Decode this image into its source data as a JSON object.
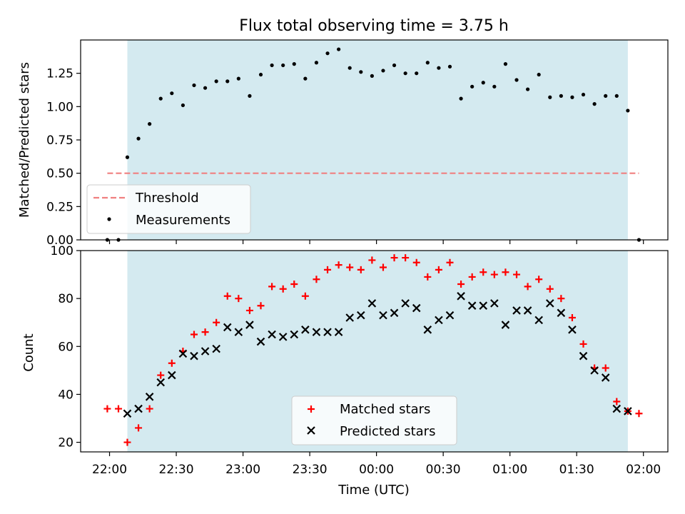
{
  "title": "Flux total observing time = 3.75 h",
  "xlabel": "Time (UTC)",
  "x_ticks": [
    "22:00",
    "22:30",
    "23:00",
    "23:30",
    "00:00",
    "00:30",
    "01:00",
    "01:30",
    "02:00"
  ],
  "x_tick_minutes": [
    0,
    30,
    60,
    90,
    120,
    150,
    180,
    210,
    240
  ],
  "observing_window_minutes": [
    8,
    233
  ],
  "colors": {
    "window": "#d4eaf0",
    "threshold": "#f08080",
    "measurements": "#000000",
    "matched": "#ff0000",
    "predicted": "#000000"
  },
  "chart_data": [
    {
      "type": "scatter",
      "name": "ratio",
      "ylabel": "Matched/Predicted stars",
      "xlim_minutes": [
        -13,
        251
      ],
      "ylim": [
        0,
        1.5
      ],
      "y_ticks": [
        "0.00",
        "0.25",
        "0.50",
        "0.75",
        "1.00",
        "1.25"
      ],
      "y_tick_values": [
        0,
        0.25,
        0.5,
        0.75,
        1.0,
        1.25
      ],
      "legend": {
        "position": "lower-left",
        "entries": [
          "Threshold",
          "Measurements"
        ]
      },
      "threshold": {
        "name": "Threshold",
        "value": 0.5,
        "x_range_minutes": [
          -1,
          238
        ]
      },
      "series": [
        {
          "name": "Measurements",
          "x_minutes": [
            -1,
            4,
            8,
            13,
            18,
            23,
            28,
            33,
            38,
            43,
            48,
            53,
            58,
            63,
            68,
            73,
            78,
            83,
            88,
            93,
            98,
            103,
            108,
            113,
            118,
            123,
            128,
            133,
            138,
            143,
            148,
            153,
            158,
            163,
            168,
            173,
            178,
            183,
            188,
            193,
            198,
            203,
            208,
            213,
            218,
            223,
            228,
            233,
            238
          ],
          "y": [
            0.0,
            0.0,
            0.62,
            0.76,
            0.87,
            1.06,
            1.1,
            1.01,
            1.16,
            1.14,
            1.19,
            1.19,
            1.21,
            1.08,
            1.24,
            1.31,
            1.31,
            1.32,
            1.21,
            1.33,
            1.4,
            1.43,
            1.29,
            1.26,
            1.23,
            1.27,
            1.31,
            1.25,
            1.25,
            1.33,
            1.29,
            1.3,
            1.06,
            1.15,
            1.18,
            1.15,
            1.32,
            1.2,
            1.13,
            1.24,
            1.07,
            1.08,
            1.07,
            1.09,
            1.02,
            1.08,
            1.08,
            0.97,
            0.0
          ]
        }
      ]
    },
    {
      "type": "scatter",
      "name": "counts",
      "ylabel": "Count",
      "xlim_minutes": [
        -13,
        251
      ],
      "ylim": [
        16,
        100
      ],
      "y_ticks": [
        "20",
        "40",
        "60",
        "80",
        "100"
      ],
      "y_tick_values": [
        20,
        40,
        60,
        80,
        100
      ],
      "legend": {
        "position": "lower-center",
        "entries": [
          "Matched stars",
          "Predicted stars"
        ]
      },
      "series": [
        {
          "name": "Matched stars",
          "marker": "+",
          "x_minutes": [
            -1,
            4,
            8,
            13,
            18,
            23,
            28,
            33,
            38,
            43,
            48,
            53,
            58,
            63,
            68,
            73,
            78,
            83,
            88,
            93,
            98,
            103,
            108,
            113,
            118,
            123,
            128,
            133,
            138,
            143,
            148,
            153,
            158,
            163,
            168,
            173,
            178,
            183,
            188,
            193,
            198,
            203,
            208,
            213,
            218,
            223,
            228,
            233,
            238
          ],
          "y": [
            34,
            34,
            20,
            26,
            34,
            48,
            53,
            58,
            65,
            66,
            70,
            81,
            80,
            75,
            77,
            85,
            84,
            86,
            81,
            88,
            92,
            94,
            93,
            92,
            96,
            93,
            97,
            97,
            95,
            89,
            92,
            95,
            86,
            89,
            91,
            90,
            91,
            90,
            85,
            88,
            84,
            80,
            72,
            61,
            51,
            51,
            37,
            33,
            32
          ]
        },
        {
          "name": "Predicted stars",
          "marker": "x",
          "x_minutes": [
            8,
            13,
            18,
            23,
            28,
            33,
            38,
            43,
            48,
            53,
            58,
            63,
            68,
            73,
            78,
            83,
            88,
            93,
            98,
            103,
            108,
            113,
            118,
            123,
            128,
            133,
            138,
            143,
            148,
            153,
            158,
            163,
            168,
            173,
            178,
            183,
            188,
            193,
            198,
            203,
            208,
            213,
            218,
            223,
            228,
            233
          ],
          "y": [
            32,
            34,
            39,
            45,
            48,
            57,
            56,
            58,
            59,
            68,
            66,
            69,
            62,
            65,
            64,
            65,
            67,
            66,
            66,
            66,
            72,
            73,
            78,
            73,
            74,
            78,
            76,
            67,
            71,
            73,
            81,
            77,
            77,
            78,
            69,
            75,
            75,
            71,
            78,
            74,
            67,
            56,
            50,
            47,
            34,
            33
          ]
        }
      ]
    }
  ]
}
